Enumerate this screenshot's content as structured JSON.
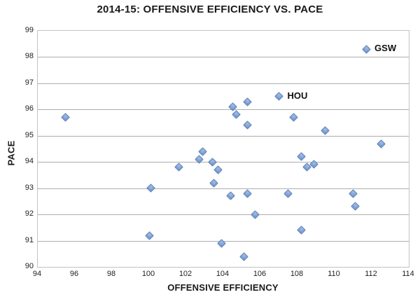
{
  "title": "2014-15: OFFENSIVE EFFICIENCY VS. PACE",
  "colors": {
    "marker_fill": "#7fa2d6",
    "marker_border": "#5a7fb6",
    "gridline": "#aeaeae",
    "plot_border": "#c3c3c3",
    "text": "#1a1a1a",
    "background": "#ffffff"
  },
  "chart_data": {
    "type": "scatter",
    "title": "2014-15: OFFENSIVE EFFICIENCY VS. PACE",
    "xlabel": "OFFENSIVE EFFICIENCY",
    "ylabel": "PACE",
    "xlim": [
      94,
      114
    ],
    "ylim": [
      90,
      99
    ],
    "x_ticks": [
      94,
      96,
      98,
      100,
      102,
      104,
      106,
      108,
      110,
      112,
      114
    ],
    "y_ticks": [
      90,
      91,
      92,
      93,
      94,
      95,
      96,
      97,
      98,
      99
    ],
    "grid": "horizontal-only",
    "legend_position": "none",
    "marker_shape": "diamond",
    "points": [
      {
        "x": 95.5,
        "y": 95.7
      },
      {
        "x": 100.0,
        "y": 91.2
      },
      {
        "x": 100.1,
        "y": 93.0
      },
      {
        "x": 101.6,
        "y": 93.8
      },
      {
        "x": 102.7,
        "y": 94.1
      },
      {
        "x": 102.9,
        "y": 94.4
      },
      {
        "x": 103.4,
        "y": 94.0
      },
      {
        "x": 103.5,
        "y": 93.2
      },
      {
        "x": 103.7,
        "y": 93.7
      },
      {
        "x": 103.9,
        "y": 90.9
      },
      {
        "x": 104.4,
        "y": 92.7
      },
      {
        "x": 104.5,
        "y": 96.1
      },
      {
        "x": 104.7,
        "y": 95.8
      },
      {
        "x": 105.1,
        "y": 90.4
      },
      {
        "x": 105.3,
        "y": 96.3
      },
      {
        "x": 105.3,
        "y": 95.4
      },
      {
        "x": 105.3,
        "y": 92.8
      },
      {
        "x": 105.7,
        "y": 92.0
      },
      {
        "x": 107.0,
        "y": 96.5,
        "label": "HOU"
      },
      {
        "x": 107.5,
        "y": 92.8
      },
      {
        "x": 107.8,
        "y": 95.7
      },
      {
        "x": 108.2,
        "y": 94.2
      },
      {
        "x": 108.2,
        "y": 91.4
      },
      {
        "x": 108.5,
        "y": 93.8
      },
      {
        "x": 108.9,
        "y": 93.9
      },
      {
        "x": 109.5,
        "y": 95.2
      },
      {
        "x": 111.0,
        "y": 92.8
      },
      {
        "x": 111.1,
        "y": 92.3
      },
      {
        "x": 111.7,
        "y": 98.3,
        "label": "GSW"
      },
      {
        "x": 112.5,
        "y": 94.7
      }
    ]
  }
}
